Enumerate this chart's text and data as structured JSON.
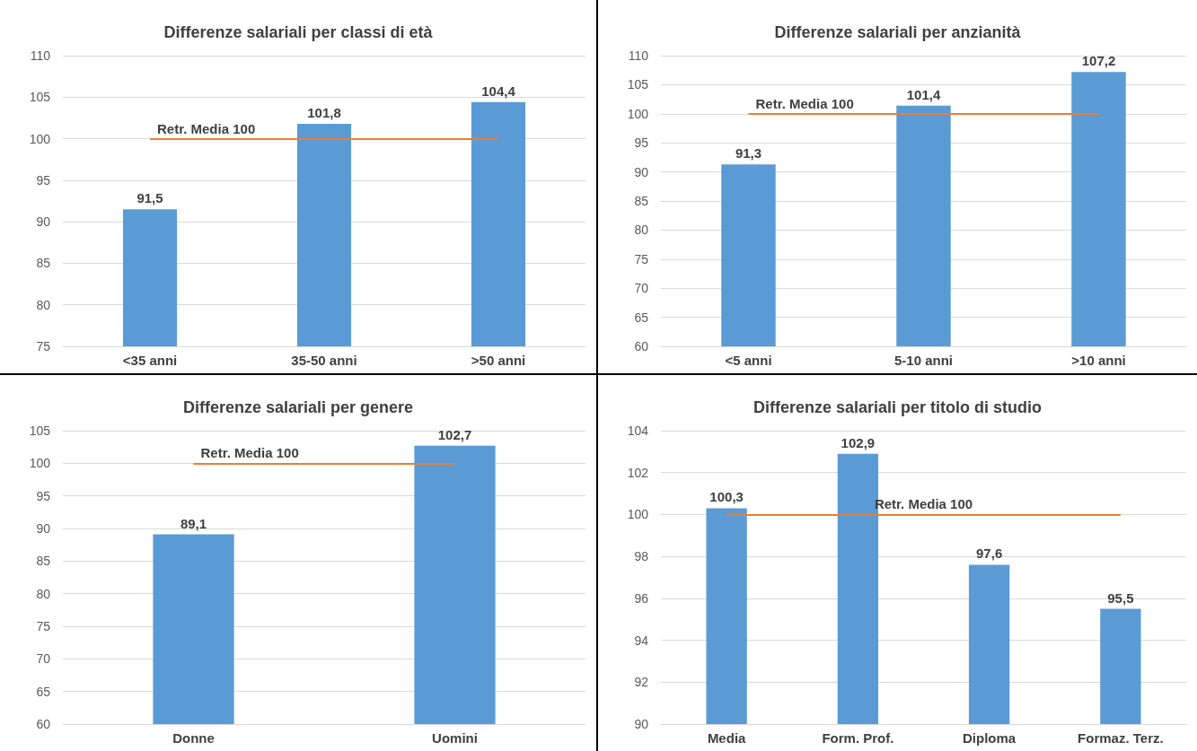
{
  "chart_data": [
    {
      "type": "bar",
      "title": "Differenze salariali per classi di età",
      "categories": [
        "<35 anni",
        "35-50 anni",
        ">50 anni"
      ],
      "values": [
        91.5,
        101.8,
        104.4
      ],
      "value_labels": [
        "91,5",
        "101,8",
        "104,4"
      ],
      "color": "#5b9bd5",
      "ylim": [
        75,
        110
      ],
      "yticks": [
        75,
        80,
        85,
        90,
        95,
        100,
        105,
        110
      ],
      "grid": "y",
      "ref_lines": [
        {
          "axis": "y",
          "value": 100,
          "label": "Retr. Media 100",
          "color": "#ed7d31"
        }
      ]
    },
    {
      "type": "bar",
      "title": "Differenze salariali per anzianità",
      "categories": [
        "<5 anni",
        "5-10 anni",
        ">10 anni"
      ],
      "values": [
        91.3,
        101.4,
        107.2
      ],
      "value_labels": [
        "91,3",
        "101,4",
        "107,2"
      ],
      "color": "#5b9bd5",
      "ylim": [
        60,
        110
      ],
      "yticks": [
        60,
        65,
        70,
        75,
        80,
        85,
        90,
        95,
        100,
        105,
        110
      ],
      "grid": "y",
      "ref_lines": [
        {
          "axis": "y",
          "value": 100,
          "label": "Retr. Media 100",
          "color": "#ed7d31"
        }
      ]
    },
    {
      "type": "bar",
      "title": "Differenze salariali per genere",
      "categories": [
        "Donne",
        "Uomini"
      ],
      "values": [
        89.1,
        102.7
      ],
      "value_labels": [
        "89,1",
        "102,7"
      ],
      "color": "#5b9bd5",
      "ylim": [
        60,
        105
      ],
      "yticks": [
        60,
        65,
        70,
        75,
        80,
        85,
        90,
        95,
        100,
        105
      ],
      "grid": "y",
      "ref_lines": [
        {
          "axis": "y",
          "value": 100,
          "label": "Retr. Media 100",
          "color": "#ed7d31"
        }
      ]
    },
    {
      "type": "bar",
      "title": "Differenze salariali per titolo di studio",
      "categories": [
        "Media",
        "Form. Prof.",
        "Diploma",
        "Formaz. Terz."
      ],
      "values": [
        100.3,
        102.9,
        97.6,
        95.5
      ],
      "value_labels": [
        "100,3",
        "102,9",
        "97,6",
        "95,5"
      ],
      "color": "#5b9bd5",
      "ylim": [
        90,
        104
      ],
      "yticks": [
        90,
        92,
        94,
        96,
        98,
        100,
        102,
        104
      ],
      "grid": "y",
      "ref_lines": [
        {
          "axis": "y",
          "value": 100,
          "label": "Retr. Media 100",
          "color": "#ed7d31"
        }
      ]
    }
  ]
}
